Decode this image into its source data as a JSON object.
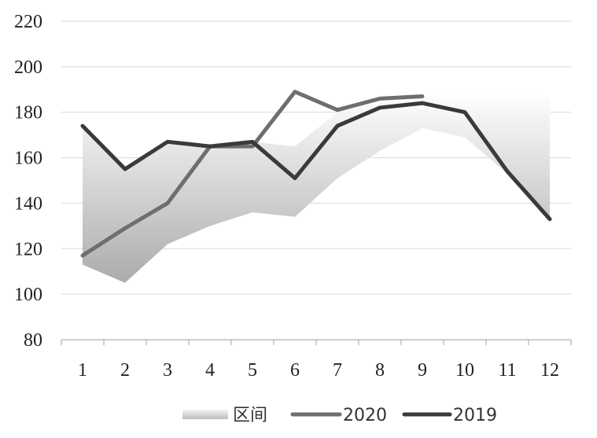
{
  "chart_data": {
    "type": "line",
    "title": "",
    "xlabel": "",
    "ylabel": "",
    "categories": [
      "1",
      "2",
      "3",
      "4",
      "5",
      "6",
      "7",
      "8",
      "9",
      "10",
      "11",
      "12"
    ],
    "ylim": [
      80,
      220
    ],
    "yticks": [
      80,
      100,
      120,
      140,
      160,
      180,
      200,
      220
    ],
    "grid": true,
    "legend_position": "bottom",
    "band": {
      "name": "区间",
      "lower": [
        113,
        105,
        122,
        130,
        136,
        134,
        151,
        163,
        173,
        169,
        153,
        134
      ],
      "upper": [
        174,
        155,
        167,
        165,
        167,
        165,
        180,
        186,
        187,
        189,
        188,
        187
      ],
      "color": "#b5b5b5"
    },
    "series": [
      {
        "name": "2020",
        "color": "#6e6e6e",
        "values": [
          117,
          129,
          140,
          165,
          165,
          189,
          181,
          186,
          187,
          null,
          null,
          null
        ]
      },
      {
        "name": "2019",
        "color": "#3a3a3a",
        "values": [
          174,
          155,
          167,
          165,
          167,
          151,
          174,
          182,
          184,
          180,
          154,
          133
        ]
      }
    ]
  }
}
